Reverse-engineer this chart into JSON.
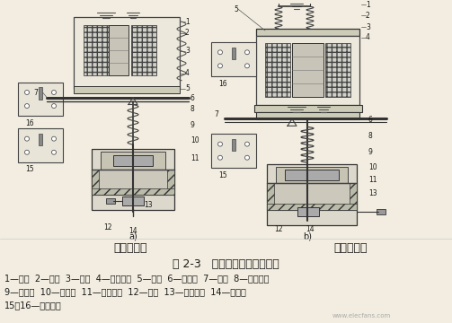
{
  "bg_color": "#f2ede0",
  "title_caption": "图 2-3   空气阻尼式时间继电器",
  "label_a": "通电延时型",
  "label_b": "断电延时型",
  "legend_line1": "1—线圈  2—鐵心  3—衔鐵  4—反力弹簧  5—推板  6—活塞杆  7—杠杆  8—塔形弹簧",
  "legend_line2": "9—弱弹簧  10—橡皮膜  11—空气室壁  12—活塞  13—调节螺钉  14—进气孔",
  "legend_line3": "15、16—微动开关",
  "watermark": "www.elecfans.com",
  "fig_width": 5.03,
  "fig_height": 3.6,
  "dpi": 100
}
